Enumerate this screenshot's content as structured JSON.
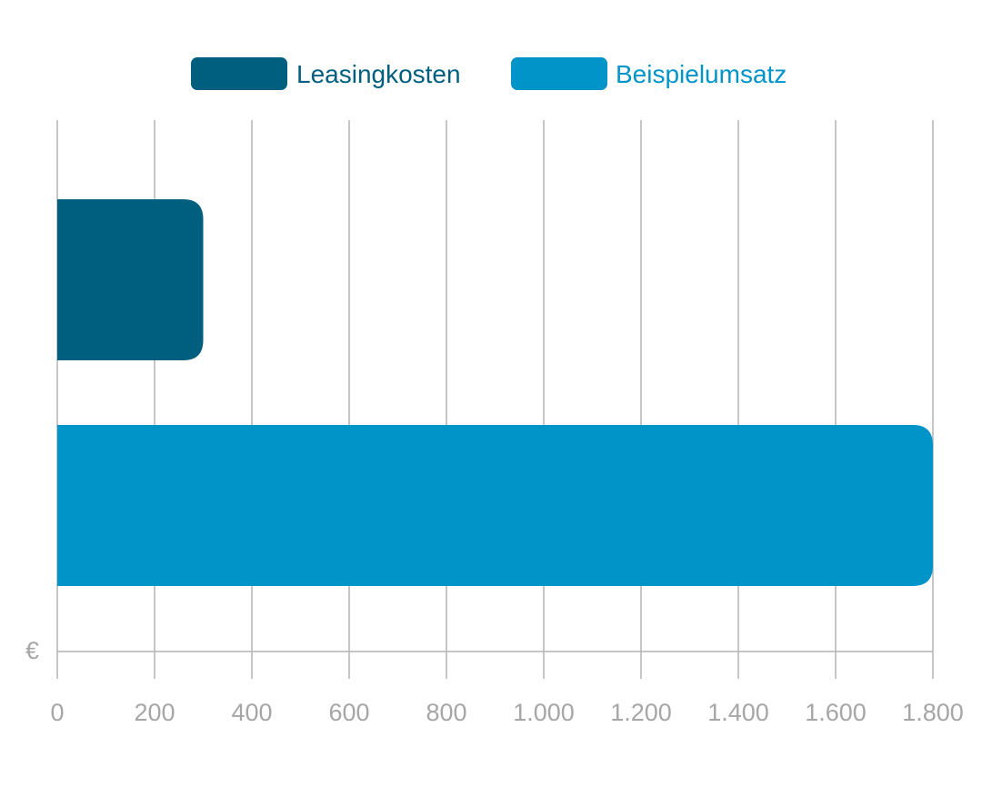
{
  "chart_data": {
    "type": "bar",
    "orientation": "horizontal",
    "unit": "€",
    "xlim": [
      0,
      1800
    ],
    "xticks": [
      "0",
      "200",
      "400",
      "600",
      "800",
      "1.000",
      "1.200",
      "1.400",
      "1.600",
      "1.800"
    ],
    "xtick_values": [
      0,
      200,
      400,
      600,
      800,
      1000,
      1200,
      1400,
      1600,
      1800
    ],
    "grid": true,
    "legend_position": "top-center",
    "series": [
      {
        "name": "Leasingkosten",
        "value": 300,
        "color": "#005f7f"
      },
      {
        "name": "Beispielumsatz",
        "value": 1800,
        "color": "#0094c8"
      }
    ]
  }
}
